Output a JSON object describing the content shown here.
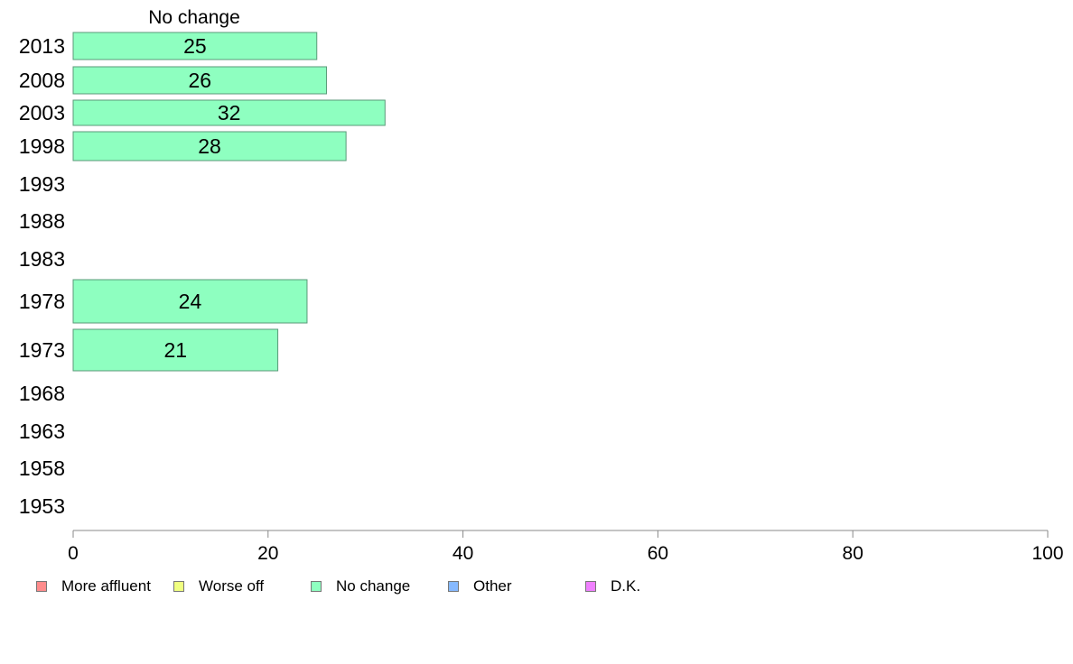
{
  "chart_data": {
    "type": "bar",
    "orientation": "horizontal",
    "title": "No change",
    "categories": [
      "2013",
      "2008",
      "2003",
      "1998",
      "1993",
      "1988",
      "1983",
      "1978",
      "1973",
      "1968",
      "1963",
      "1958",
      "1953"
    ],
    "series": [
      {
        "name": "No change",
        "color": "#8effc0",
        "values": [
          25,
          26,
          32,
          28,
          null,
          null,
          null,
          24,
          21,
          null,
          null,
          null,
          null
        ]
      }
    ],
    "xlim": [
      0,
      100
    ],
    "xticks": [
      0,
      20,
      40,
      60,
      80,
      100
    ],
    "grid": false,
    "legend_position": "bottom",
    "legend": [
      {
        "label": "More affluent",
        "color": "#ff8c8c"
      },
      {
        "label": "Worse off",
        "color": "#f0ff80"
      },
      {
        "label": "No change",
        "color": "#8effc0"
      },
      {
        "label": "Other",
        "color": "#86b9ff"
      },
      {
        "label": "D.K.",
        "color": "#f080ff"
      }
    ]
  }
}
